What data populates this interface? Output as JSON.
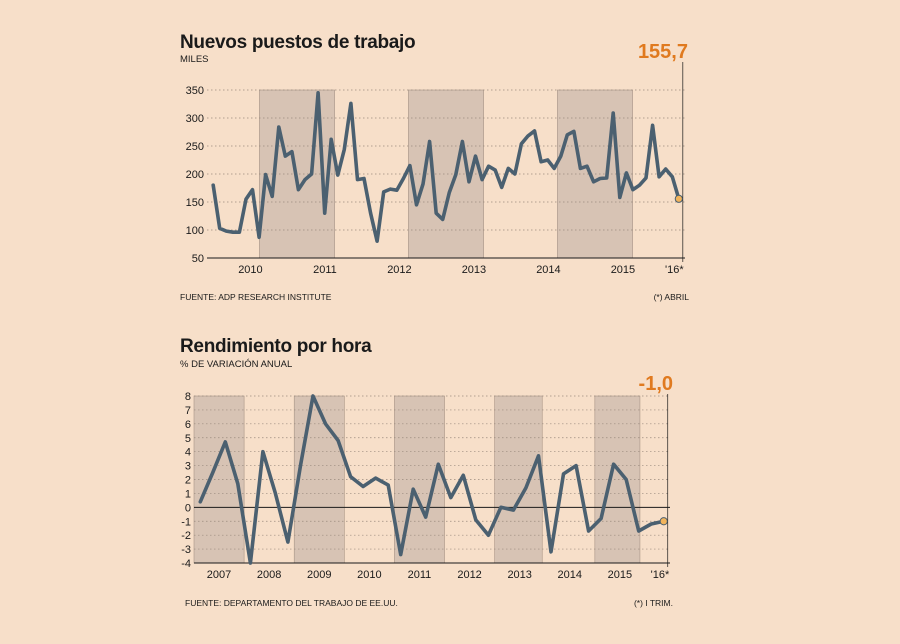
{
  "colors": {
    "background": "#f7dfc9",
    "shade": "#d7c3b4",
    "line": "#4b6070",
    "accent": "#e07a1f",
    "marker": "#f2b45c"
  },
  "chart_data": [
    {
      "type": "line",
      "title": "Nuevos puestos de trabajo",
      "subtitle": "MILES",
      "callout": "155,7",
      "ylim": [
        50,
        350
      ],
      "yticks": [
        {
          "value": 350,
          "label": "350"
        },
        {
          "value": 300,
          "label": "300"
        },
        {
          "value": 250,
          "label": "250"
        },
        {
          "value": 200,
          "label": "200"
        },
        {
          "value": 150,
          "label": "150"
        },
        {
          "value": 100,
          "label": "100"
        },
        {
          "value": 50,
          "label": "50"
        }
      ],
      "xlim": [
        2009.917,
        2016.333
      ],
      "year_labels": [
        {
          "x": 2010.5,
          "label": "2010"
        },
        {
          "x": 2011.5,
          "label": "2011"
        },
        {
          "x": 2012.5,
          "label": "2012"
        },
        {
          "x": 2013.5,
          "label": "2013"
        },
        {
          "x": 2014.5,
          "label": "2014"
        },
        {
          "x": 2015.5,
          "label": "2015"
        },
        {
          "x": 2016.19,
          "label": "'16*"
        }
      ],
      "shaded": [
        [
          2010.62,
          2011.63
        ],
        [
          2012.62,
          2013.63
        ],
        [
          2014.62,
          2015.63
        ]
      ],
      "source": "FUENTE: ADP RESEARCH INSTITUTE",
      "note": "(*) ABRIL",
      "values": [
        180,
        103,
        98,
        96,
        96,
        155,
        172,
        87,
        199,
        160,
        284,
        232,
        240,
        172,
        190,
        200,
        345,
        130,
        262,
        198,
        244,
        326,
        190,
        192,
        130,
        80,
        168,
        173,
        171,
        192,
        215,
        145,
        182,
        258,
        130,
        119,
        167,
        199,
        258,
        186,
        232,
        190,
        214,
        207,
        176,
        210,
        200,
        254,
        268,
        277,
        222,
        225,
        210,
        232,
        270,
        276,
        210,
        214,
        186,
        192,
        193,
        309,
        158,
        202,
        172,
        180,
        193,
        287,
        195,
        209,
        195,
        155.7
      ]
    },
    {
      "type": "line",
      "title": "Rendimiento por hora",
      "subtitle": "% DE VARIACIÓN ANUAL",
      "callout": "-1,0",
      "ylim": [
        -4,
        8
      ],
      "yticks": [
        {
          "value": 8,
          "label": "8"
        },
        {
          "value": 7,
          "label": "7"
        },
        {
          "value": 6,
          "label": "6"
        },
        {
          "value": 5,
          "label": "5"
        },
        {
          "value": 4,
          "label": "4"
        },
        {
          "value": 3,
          "label": "3"
        },
        {
          "value": 2,
          "label": "2"
        },
        {
          "value": 1,
          "label": "1"
        },
        {
          "value": 0,
          "label": "0"
        },
        {
          "value": -1,
          "label": "-1"
        },
        {
          "value": -2,
          "label": "-2"
        },
        {
          "value": -3,
          "label": "-3"
        },
        {
          "value": -4,
          "label": "-4"
        }
      ],
      "xlim": [
        2006.75,
        2016.25
      ],
      "year_labels": [
        {
          "x": 2007.25,
          "label": "2007"
        },
        {
          "x": 2008.25,
          "label": "2008"
        },
        {
          "x": 2009.25,
          "label": "2009"
        },
        {
          "x": 2010.25,
          "label": "2010"
        },
        {
          "x": 2011.25,
          "label": "2011"
        },
        {
          "x": 2012.25,
          "label": "2012"
        },
        {
          "x": 2013.25,
          "label": "2013"
        },
        {
          "x": 2014.25,
          "label": "2014"
        },
        {
          "x": 2015.25,
          "label": "2015"
        },
        {
          "x": 2016.05,
          "label": "'16*"
        }
      ],
      "shaded": [
        [
          2006.75,
          2007.75
        ],
        [
          2008.75,
          2009.75
        ],
        [
          2010.75,
          2011.75
        ],
        [
          2012.75,
          2013.7
        ],
        [
          2014.75,
          2015.65
        ]
      ],
      "source": "FUENTE: DEPARTAMENTO DEL TRABAJO DE EE.UU.",
      "note": "(*) I TRIM.",
      "x": [
        2006.875,
        2007.125,
        2007.375,
        2007.625,
        2007.875,
        2008.125,
        2008.375,
        2008.625,
        2008.875,
        2009.125,
        2009.375,
        2009.625,
        2009.875,
        2010.125,
        2010.375,
        2010.625,
        2010.875,
        2011.125,
        2011.375,
        2011.625,
        2011.875,
        2012.125,
        2012.375,
        2012.625,
        2012.875,
        2013.125,
        2013.375,
        2013.625,
        2013.875,
        2014.125,
        2014.375,
        2014.625,
        2014.875,
        2015.125,
        2015.375,
        2015.625,
        2015.875,
        2016.125
      ],
      "values": [
        0.4,
        2.5,
        4.7,
        1.7,
        -4.0,
        4.0,
        1.0,
        -2.5,
        3.0,
        8.0,
        6.0,
        4.8,
        2.2,
        1.5,
        2.1,
        1.6,
        -3.4,
        1.3,
        -0.7,
        3.1,
        0.7,
        2.3,
        -0.9,
        -2.0,
        0.0,
        -0.2,
        1.4,
        3.7,
        -3.2,
        2.4,
        3.0,
        -1.7,
        -0.8,
        3.1,
        2.0,
        -1.7,
        -1.2,
        -1.0
      ]
    }
  ]
}
